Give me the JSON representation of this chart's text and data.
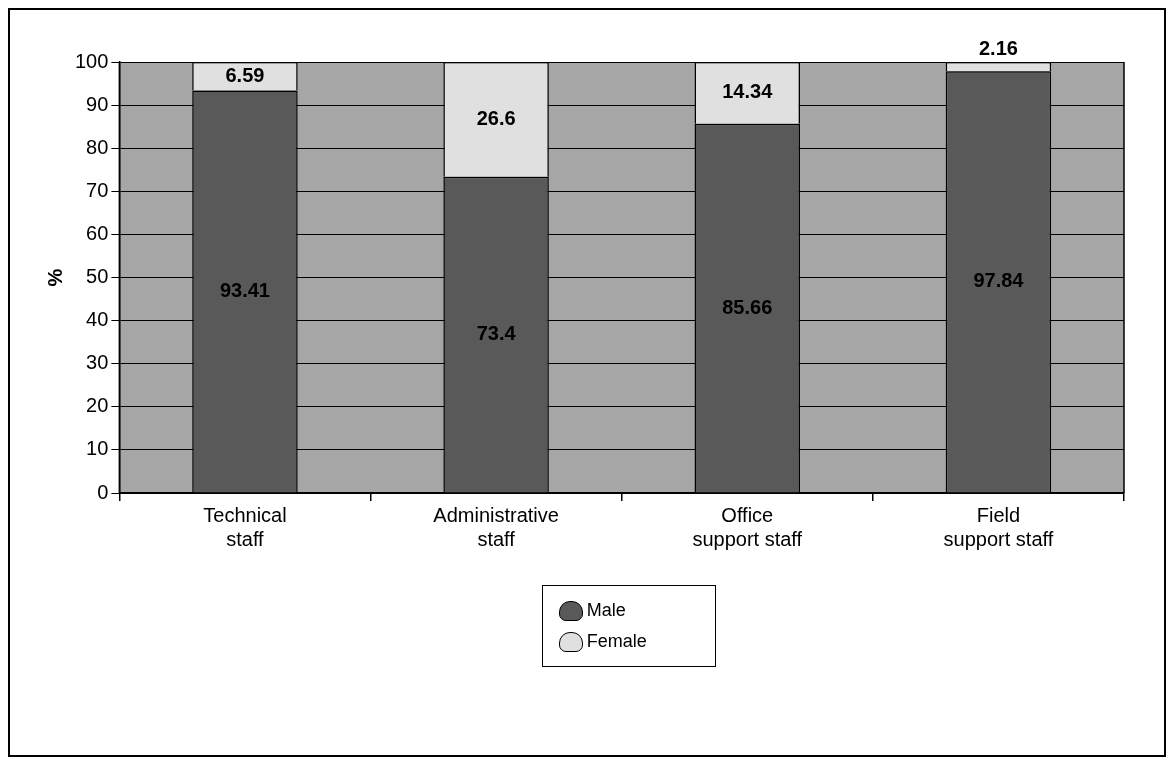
{
  "chart_data": {
    "type": "bar",
    "ylabel": "%",
    "categories": [
      "Technical staff",
      "Administrative staff",
      "Office support staff",
      "Field support staff"
    ],
    "series": [
      {
        "name": "Male",
        "color": "#595959",
        "values": [
          93.41,
          73.4,
          85.66,
          97.84
        ]
      },
      {
        "name": "Female",
        "color": "#e0e0e0",
        "values": [
          6.59,
          26.6,
          14.34,
          2.16
        ]
      }
    ],
    "stacked": true,
    "ylim": [
      0,
      100
    ],
    "yticks": [
      0,
      10,
      20,
      30,
      40,
      50,
      60,
      70,
      80,
      90,
      100
    ],
    "grid": "y",
    "data_labels": true,
    "legend": "bottom"
  }
}
